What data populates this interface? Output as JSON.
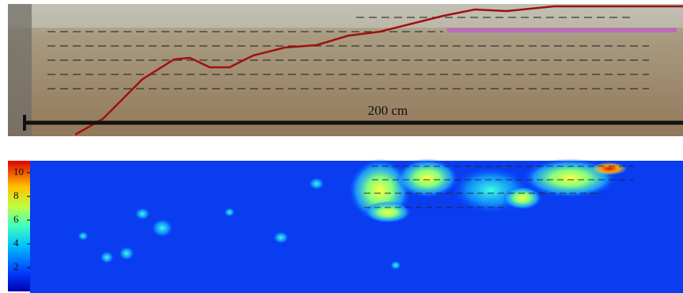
{
  "photo": {
    "scale_label": "200 cm"
  },
  "colorbar": {
    "lim": [
      0,
      11
    ],
    "ticks": [
      2,
      4,
      6,
      8,
      10
    ]
  }
}
